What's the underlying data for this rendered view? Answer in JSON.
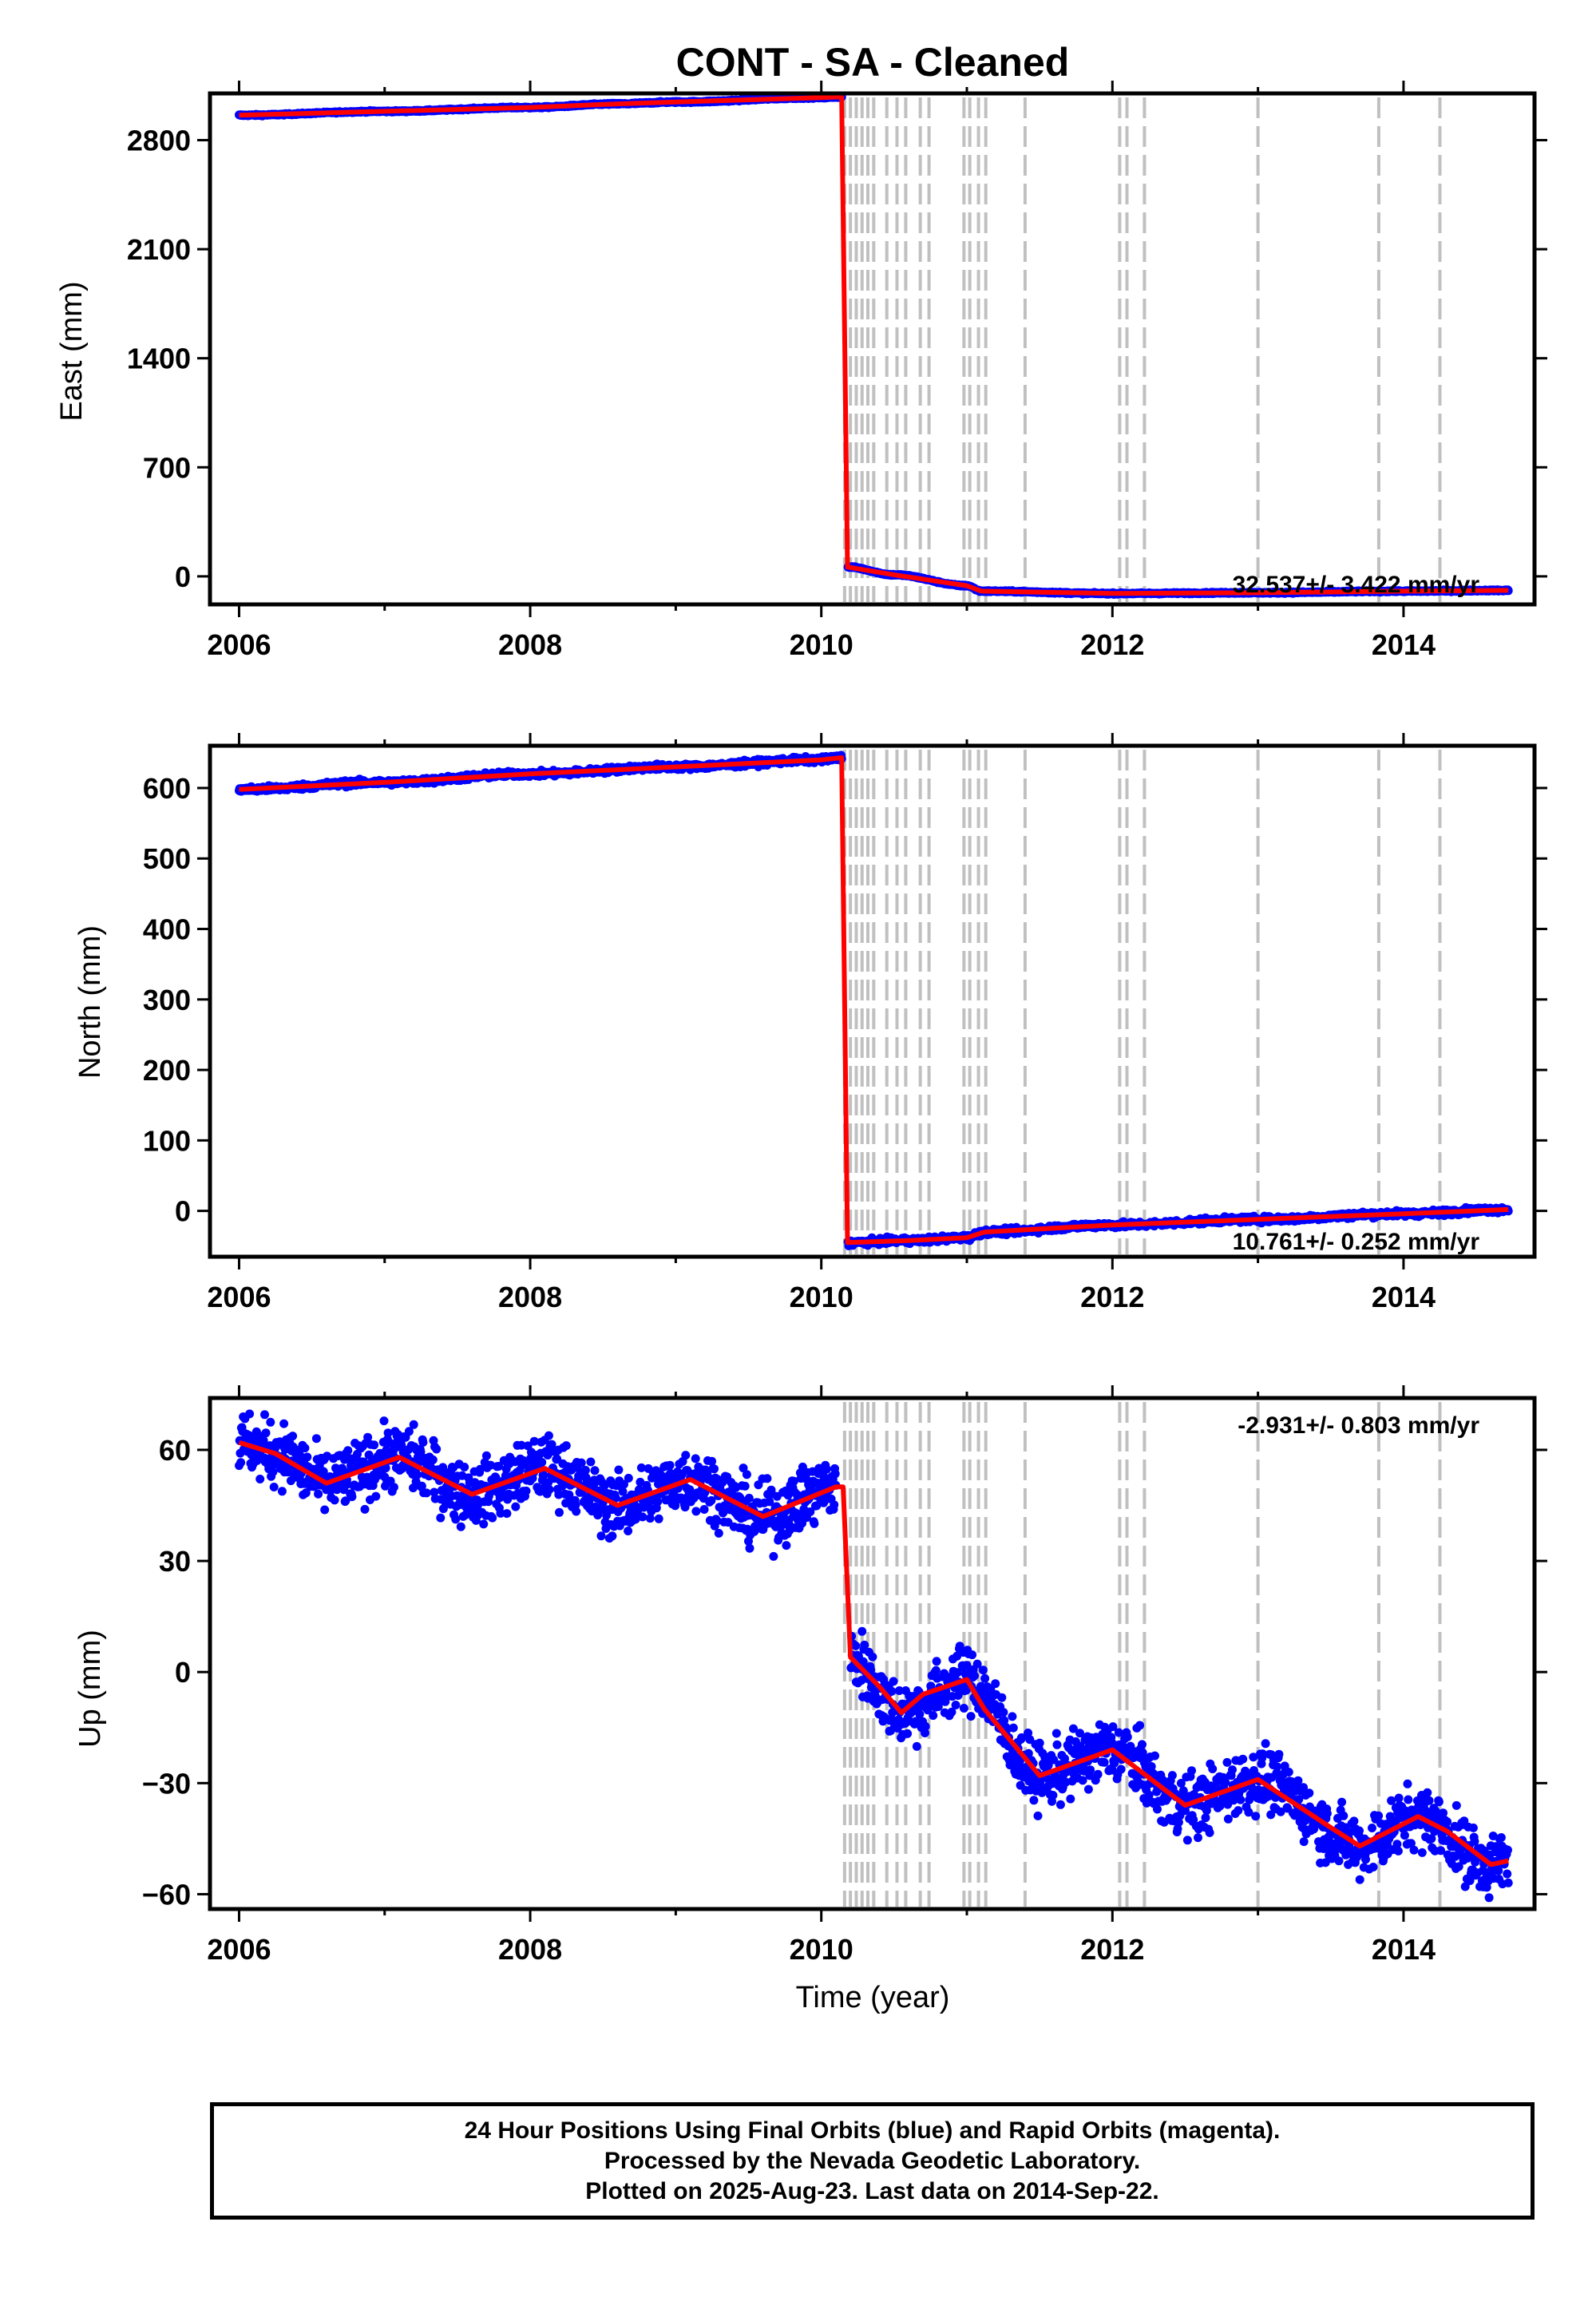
{
  "title": "CONT  - SA - Cleaned",
  "colors": {
    "observations": "#0000ff",
    "model": "#ff0000",
    "event_lines": "#c0c0c0",
    "frame": "#000000"
  },
  "chart_data": [
    {
      "type": "scatter",
      "ylabel": "East (mm)",
      "xlabel": "",
      "xlim": [
        2005.8,
        2014.9
      ],
      "ylim": [
        -180,
        3100
      ],
      "x_ticks": [
        "2006",
        "2008",
        "2010",
        "2012",
        "2014"
      ],
      "y_ticks": [
        "0",
        "700",
        "1400",
        "2100",
        "2800"
      ],
      "rate_label": "32.537+/- 3.422 mm/yr",
      "grid": false,
      "series": [
        {
          "role": "observations",
          "x": [
            2006.0,
            2007.0,
            2008.0,
            2008.6,
            2009.0,
            2010.0,
            2010.14,
            2010.18,
            2010.5,
            2011.0,
            2011.1,
            2012.0,
            2013.0,
            2014.0,
            2014.72
          ],
          "y": [
            2960,
            2985,
            3010,
            3033,
            3045,
            3073,
            3078,
            60,
            10,
            -60,
            -95,
            -110,
            -105,
            -95,
            -90
          ]
        },
        {
          "role": "model",
          "x": [
            2006.0,
            2007.0,
            2008.0,
            2008.6,
            2009.0,
            2010.0,
            2010.14,
            2010.18,
            2010.5,
            2011.0,
            2011.1,
            2012.0,
            2013.0,
            2014.0,
            2014.72
          ],
          "y": [
            2960,
            2985,
            3010,
            3033,
            3045,
            3073,
            3078,
            60,
            10,
            -60,
            -95,
            -110,
            -105,
            -95,
            -90
          ]
        }
      ]
    },
    {
      "type": "scatter",
      "ylabel": "North (mm)",
      "xlabel": "",
      "xlim": [
        2005.8,
        2014.9
      ],
      "ylim": [
        -65,
        660
      ],
      "x_ticks": [
        "2006",
        "2008",
        "2010",
        "2012",
        "2014"
      ],
      "y_ticks": [
        "0",
        "100",
        "200",
        "300",
        "400",
        "500",
        "600"
      ],
      "rate_label": "10.761+/- 0.252 mm/yr",
      "grid": false,
      "series": [
        {
          "role": "observations",
          "x": [
            2006.0,
            2007.0,
            2008.0,
            2009.0,
            2010.0,
            2010.14,
            2010.18,
            2010.6,
            2011.0,
            2011.12,
            2012.0,
            2013.0,
            2014.0,
            2014.72
          ],
          "y": [
            598,
            608,
            620,
            630,
            640,
            643,
            -45,
            -42,
            -38,
            -30,
            -20,
            -12,
            -4,
            2
          ]
        },
        {
          "role": "model",
          "x": [
            2006.0,
            2007.0,
            2008.0,
            2009.0,
            2010.0,
            2010.14,
            2010.18,
            2010.6,
            2011.0,
            2011.12,
            2012.0,
            2013.0,
            2014.0,
            2014.72
          ],
          "y": [
            598,
            608,
            620,
            630,
            640,
            643,
            -45,
            -42,
            -38,
            -30,
            -20,
            -12,
            -4,
            2
          ]
        }
      ]
    },
    {
      "type": "scatter",
      "ylabel": "Up (mm)",
      "xlabel": "Time (year)",
      "xlim": [
        2005.8,
        2014.9
      ],
      "ylim": [
        -64,
        74
      ],
      "x_ticks": [
        "2006",
        "2008",
        "2010",
        "2012",
        "2014"
      ],
      "y_ticks": [
        "-60",
        "-30",
        "0",
        "30",
        "60"
      ],
      "rate_label": "-2.931+/- 0.803 mm/yr",
      "grid": false,
      "series": [
        {
          "role": "model",
          "x": [
            2006.0,
            2006.25,
            2006.6,
            2007.1,
            2007.6,
            2008.1,
            2008.6,
            2009.1,
            2009.6,
            2010.1,
            2010.15,
            2010.2,
            2010.4,
            2010.55,
            2010.7,
            2011.0,
            2011.12,
            2011.5,
            2012.0,
            2012.5,
            2013.0,
            2013.5,
            2013.7,
            2014.1,
            2014.3,
            2014.6,
            2014.72
          ],
          "y": [
            62,
            59,
            51,
            58,
            48,
            55,
            45,
            52,
            42,
            50,
            50,
            4,
            -4,
            -11,
            -6,
            -2,
            -10,
            -28,
            -21,
            -36,
            -29,
            -42,
            -47,
            -39,
            -43,
            -52,
            -51
          ]
        },
        {
          "role": "observations",
          "x": [
            2006.0,
            2006.25,
            2006.6,
            2007.1,
            2007.6,
            2008.1,
            2008.6,
            2009.1,
            2009.6,
            2010.1,
            2010.2,
            2010.55,
            2011.0,
            2011.5,
            2012.0,
            2012.5,
            2013.0,
            2013.7,
            2014.1,
            2014.6,
            2014.72
          ],
          "y": [
            62,
            59,
            51,
            58,
            48,
            55,
            45,
            52,
            42,
            50,
            4,
            -11,
            -2,
            -28,
            -21,
            -36,
            -29,
            -47,
            -39,
            -52,
            -51
          ]
        }
      ]
    }
  ],
  "event_lines_years": [
    2010.16,
    2010.2,
    2010.24,
    2010.28,
    2010.32,
    2010.36,
    2010.45,
    2010.52,
    2010.58,
    2010.68,
    2010.74,
    2010.98,
    2011.02,
    2011.08,
    2011.13,
    2011.4,
    2012.05,
    2012.1,
    2012.22,
    2013.0,
    2013.83,
    2014.25
  ],
  "footer": {
    "line1": "24 Hour Positions Using Final Orbits (blue) and Rapid Orbits (magenta).",
    "line2": "Processed by the Nevada Geodetic Laboratory.",
    "line3": "Plotted on 2025-Aug-23. Last data on 2014-Sep-22."
  }
}
